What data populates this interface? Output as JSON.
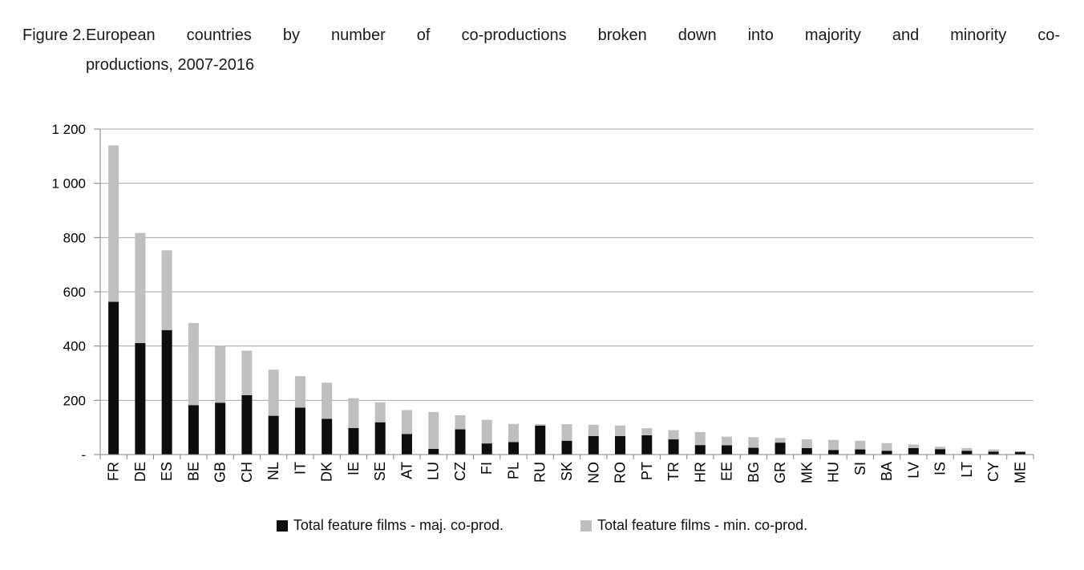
{
  "figure": {
    "label": "Figure 2.",
    "title_line1": "European countries by number of co-productions broken down into majority and minority co-",
    "title_line2": "productions, 2007-2016"
  },
  "chart_data": {
    "type": "bar",
    "stacked": true,
    "title": "European countries by number of co-productions broken down into majority and minority co-productions, 2007-2016",
    "categories": [
      "FR",
      "DE",
      "ES",
      "BE",
      "GB",
      "CH",
      "NL",
      "IT",
      "DK",
      "IE",
      "SE",
      "AT",
      "LU",
      "CZ",
      "FI",
      "PL",
      "RU",
      "SK",
      "NO",
      "RO",
      "PT",
      "TR",
      "HR",
      "EE",
      "BG",
      "GR",
      "MK",
      "HU",
      "SI",
      "BA",
      "LV",
      "IS",
      "LT",
      "CY",
      "ME"
    ],
    "series": [
      {
        "name": "Total feature films - maj. co-prod.",
        "color": "#0d0d0d",
        "values": [
          563,
          411,
          459,
          182,
          191,
          219,
          143,
          173,
          132,
          98,
          119,
          76,
          21,
          93,
          41,
          46,
          107,
          51,
          68,
          68,
          71,
          56,
          35,
          34,
          25,
          44,
          24,
          17,
          19,
          14,
          24,
          20,
          14,
          11,
          10
        ]
      },
      {
        "name": "Total feature films - min. co-prod.",
        "color": "#bfbfbf",
        "values": [
          577,
          406,
          294,
          303,
          209,
          164,
          170,
          116,
          133,
          110,
          74,
          88,
          136,
          52,
          87,
          67,
          5,
          61,
          42,
          39,
          26,
          34,
          48,
          32,
          39,
          17,
          32,
          37,
          32,
          28,
          13,
          9,
          10,
          8,
          2
        ]
      }
    ],
    "totals": [
      1140,
      817,
      753,
      485,
      400,
      383,
      313,
      289,
      265,
      208,
      193,
      164,
      157,
      145,
      128,
      113,
      112,
      112,
      110,
      107,
      97,
      90,
      83,
      66,
      64,
      61,
      56,
      54,
      51,
      42,
      37,
      29,
      24,
      19,
      12
    ],
    "xlabel": "",
    "ylabel": "",
    "ylim": [
      0,
      1200
    ],
    "ytick_interval": 200,
    "ytick_labels": [
      "-",
      "200",
      "400",
      "600",
      "800",
      "1 000",
      "1 200"
    ],
    "grid": true,
    "x_labels_rotated_degrees": -90,
    "legend_position": "bottom",
    "colors": {
      "gridline": "#a6a6a6",
      "axis": "#808080",
      "background": "#ffffff",
      "text": "#000000"
    }
  }
}
